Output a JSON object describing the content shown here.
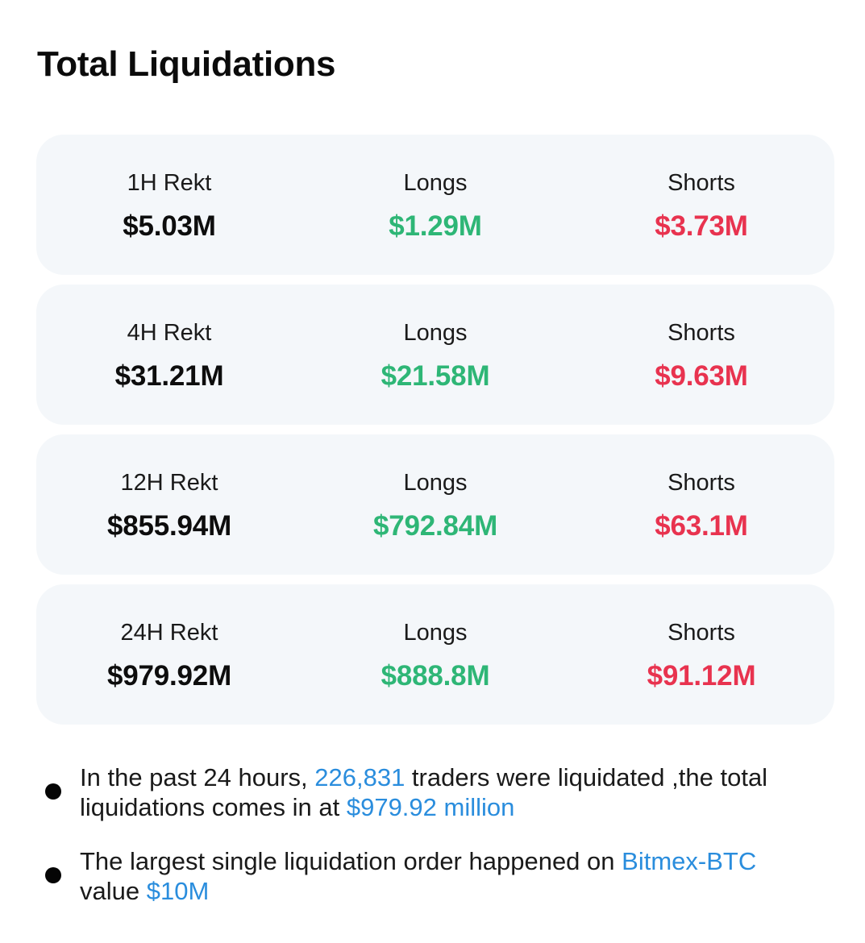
{
  "page": {
    "title": "Total Liquidations"
  },
  "colors": {
    "long": "#2eb676",
    "short": "#e8334f",
    "highlight": "#2a8ddd",
    "card_bg": "#f4f7fa"
  },
  "periods": [
    {
      "label": "1H Rekt",
      "total": "$5.03M",
      "longs_label": "Longs",
      "longs": "$1.29M",
      "shorts_label": "Shorts",
      "shorts": "$3.73M"
    },
    {
      "label": "4H Rekt",
      "total": "$31.21M",
      "longs_label": "Longs",
      "longs": "$21.58M",
      "shorts_label": "Shorts",
      "shorts": "$9.63M"
    },
    {
      "label": "12H Rekt",
      "total": "$855.94M",
      "longs_label": "Longs",
      "longs": "$792.84M",
      "shorts_label": "Shorts",
      "shorts": "$63.1M"
    },
    {
      "label": "24H Rekt",
      "total": "$979.92M",
      "longs_label": "Longs",
      "longs": "$888.8M",
      "shorts_label": "Shorts",
      "shorts": "$91.12M"
    }
  ],
  "summary": {
    "line1": {
      "part1": "In the past 24 hours, ",
      "traders": "226,831",
      "part2": " traders were liquidated ,the total liquidations comes in at ",
      "total": "$979.92 million"
    },
    "line2": {
      "part1": "The largest single liquidation order happened on ",
      "exchange": "Bitmex-BTC",
      "part2": " value ",
      "value": "$10M"
    }
  }
}
